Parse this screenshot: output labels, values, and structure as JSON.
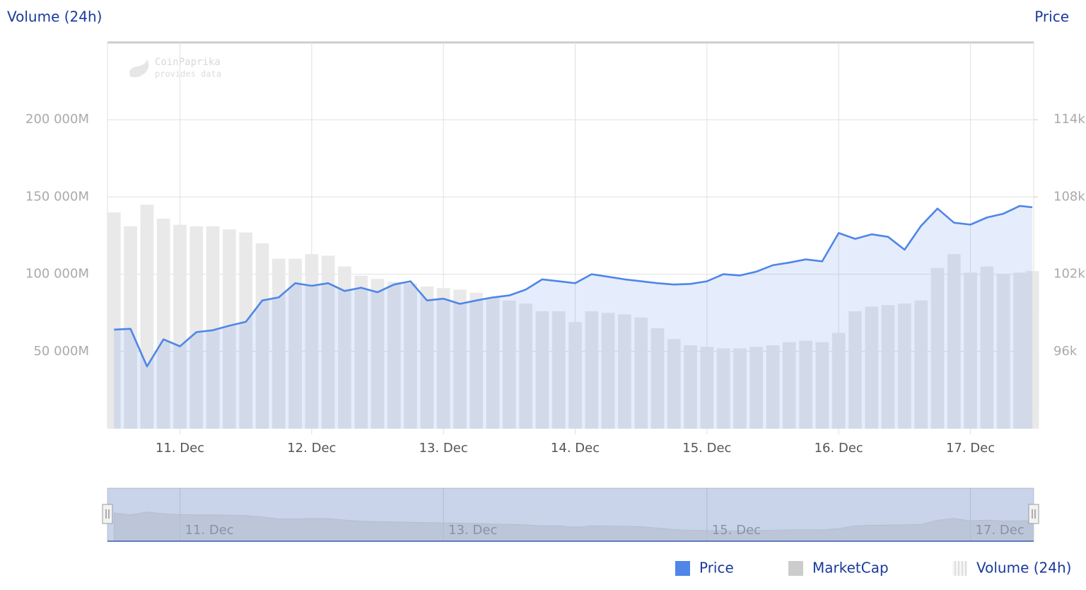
{
  "chart_data": {
    "type": "line",
    "y_axis_title": "Volume (24h)",
    "y2_axis_title": "Price",
    "watermark": [
      "CoinPaprika",
      "provides data"
    ],
    "x": [
      10.5,
      10.625,
      10.75,
      10.875,
      11.0,
      11.125,
      11.25,
      11.375,
      11.5,
      11.625,
      11.75,
      11.875,
      12.0,
      12.125,
      12.25,
      12.375,
      12.5,
      12.625,
      12.75,
      12.875,
      13.0,
      13.125,
      13.25,
      13.375,
      13.5,
      13.625,
      13.75,
      13.875,
      14.0,
      14.125,
      14.25,
      14.375,
      14.5,
      14.625,
      14.75,
      14.875,
      15.0,
      15.125,
      15.25,
      15.375,
      15.5,
      15.625,
      15.75,
      15.875,
      16.0,
      16.125,
      16.25,
      16.375,
      16.5,
      16.625,
      16.75,
      16.875,
      17.0,
      17.125,
      17.25,
      17.375,
      17.47
    ],
    "xlim": [
      10.45,
      17.48
    ],
    "xticks": [
      {
        "value": 11,
        "label": "11. Dec"
      },
      {
        "value": 12,
        "label": "12. Dec"
      },
      {
        "value": 13,
        "label": "13. Dec"
      },
      {
        "value": 14,
        "label": "14. Dec"
      },
      {
        "value": 15,
        "label": "15. Dec"
      },
      {
        "value": 16,
        "label": "16. Dec"
      },
      {
        "value": 17,
        "label": "17. Dec"
      }
    ],
    "navigator_xticks": [
      {
        "value": 11,
        "label": "11. Dec"
      },
      {
        "value": 13,
        "label": "13. Dec"
      },
      {
        "value": 15,
        "label": "15. Dec"
      },
      {
        "value": 17,
        "label": "17. Dec"
      }
    ],
    "ylim": [
      0,
      250000
    ],
    "yticks": [
      {
        "value": 50000,
        "label": "50 000M"
      },
      {
        "value": 100000,
        "label": "100 000M"
      },
      {
        "value": 150000,
        "label": "150 000M"
      },
      {
        "value": 200000,
        "label": "200 000M"
      }
    ],
    "y2lim": [
      90000,
      120000
    ],
    "y2ticks": [
      {
        "value": 96000,
        "label": "96k"
      },
      {
        "value": 102000,
        "label": "102k"
      },
      {
        "value": 108000,
        "label": "108k"
      },
      {
        "value": 114000,
        "label": "114k"
      }
    ],
    "grid": true,
    "legend": "bottom-right",
    "series": [
      {
        "name": "Price",
        "color": "#4f86e8",
        "axis": "y2",
        "values": [
          97700,
          97760,
          94840,
          96940,
          96400,
          97500,
          97650,
          98000,
          98300,
          99960,
          100200,
          101300,
          101100,
          101300,
          100700,
          100950,
          100600,
          101200,
          101450,
          99960,
          100100,
          99700,
          99960,
          100200,
          100350,
          100800,
          101600,
          101450,
          101300,
          102000,
          101800,
          101600,
          101450,
          101300,
          101200,
          101250,
          101450,
          102000,
          101900,
          102200,
          102700,
          102900,
          103150,
          103000,
          105200,
          104750,
          105100,
          104900,
          103900,
          105750,
          107100,
          106000,
          105850,
          106400,
          106700,
          107300,
          107200
        ]
      },
      {
        "name": "MarketCap",
        "color": "#cccccc",
        "hidden": true
      },
      {
        "name": "Volume (24h)",
        "color": "#e9e9e9",
        "values": [
          140000,
          131000,
          145000,
          136000,
          132000,
          131000,
          131000,
          129000,
          127000,
          120000,
          110000,
          110000,
          113000,
          112000,
          105000,
          99000,
          97000,
          95000,
          94000,
          92000,
          91000,
          90000,
          88000,
          85000,
          83000,
          81000,
          76000,
          76000,
          69000,
          76000,
          75000,
          74000,
          72000,
          65000,
          58000,
          54000,
          53000,
          52000,
          52000,
          53000,
          54000,
          56000,
          57000,
          56000,
          62000,
          76000,
          79000,
          80000,
          81000,
          83000,
          104000,
          113000,
          101000,
          105000,
          100000,
          101000,
          102000
        ]
      }
    ]
  }
}
